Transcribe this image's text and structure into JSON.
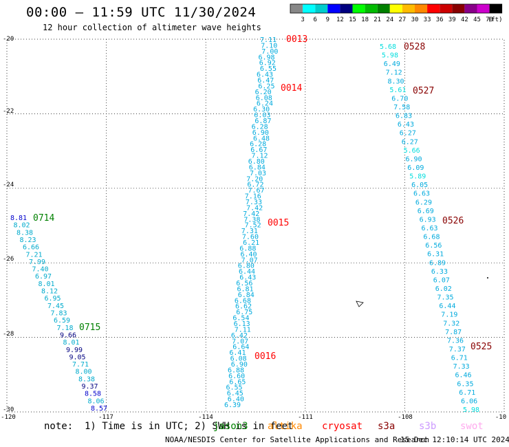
{
  "header": {
    "title": "00:00 — 11:59 UTC 11/30/2024",
    "subtitle": "12 hour collection of altimeter wave heights"
  },
  "color_scale": {
    "unit_label": "(ft)",
    "ticks": [
      "3",
      "6",
      "9",
      "12",
      "15",
      "18",
      "21",
      "24",
      "27",
      "30",
      "33",
      "36",
      "39",
      "42",
      "45",
      "70"
    ],
    "colors": [
      "#888888",
      "#00ffff",
      "#00cccc",
      "#0000ff",
      "#000080",
      "#00ff00",
      "#00bb00",
      "#008000",
      "#ffff00",
      "#ffbb00",
      "#ff8800",
      "#ff0000",
      "#cc0000",
      "#880000",
      "#880088",
      "#cc00cc",
      "#000000"
    ]
  },
  "map": {
    "lon_range": [
      -120,
      -110
    ],
    "lat_range": [
      -30,
      -20
    ],
    "x_tick_labels": [
      "-120",
      "-117",
      "-114",
      "-111",
      "-108",
      "-10"
    ],
    "y_tick_labels": [
      "-20",
      "-22",
      "-24",
      "-26",
      "-28",
      "-30"
    ],
    "grid": "dotted"
  },
  "passes": [
    {
      "label": "0013",
      "color": "#ff0000"
    },
    {
      "label": "0014",
      "color": "#ff0000"
    },
    {
      "label": "0015",
      "color": "#ff0000"
    },
    {
      "label": "0016",
      "color": "#ff0000"
    },
    {
      "label": "0528",
      "color": "#880000"
    },
    {
      "label": "0527",
      "color": "#880000"
    },
    {
      "label": "0526",
      "color": "#880000"
    },
    {
      "label": "0525",
      "color": "#880000"
    },
    {
      "label": "0714",
      "color": "#008000"
    },
    {
      "label": "0715",
      "color": "#008000"
    }
  ],
  "tracks": {
    "track_0013_0016": [
      "7.11",
      "7.10",
      "7.00",
      "6.98",
      "6.92",
      "6.55",
      "6.43",
      "6.47",
      "6.25",
      "6.20",
      "6.08",
      "6.24",
      "6.30",
      "6.03",
      "6.87",
      "6.28",
      "6.90",
      "6.48",
      "6.28",
      "6.67",
      "7.12",
      "6.80",
      "6.84",
      "7.03",
      "7.20",
      "6.72",
      "7.67",
      "7.16",
      "7.33",
      "7.42",
      "7.42",
      "7.38",
      "7.52",
      "7.31",
      "7.60",
      "6.21",
      "6.88",
      "6.40",
      "7.07",
      "6.80",
      "6.44",
      "6.43",
      "6.56",
      "6.81",
      "6.84",
      "6.68",
      "6.62",
      "6.75",
      "6.54",
      "6.13",
      "7.11",
      "6.42",
      "7.07",
      "6.64",
      "6.41",
      "6.08",
      "6.90",
      "6.88",
      "6.60",
      "6.65",
      "6.55",
      "6.45",
      "6.40",
      "6.39"
    ],
    "track_0528_0525": [
      "5.68",
      "5.98",
      "6.49",
      "7.12",
      "8.30",
      "5.61",
      "6.70",
      "7.58",
      "6.83",
      "6.43",
      "6.27",
      "6.27",
      "5.66",
      "6.90",
      "6.09",
      "5.89",
      "6.05",
      "6.63",
      "6.29",
      "6.69",
      "6.93",
      "6.63",
      "6.68",
      "6.56",
      "6.31",
      "6.89",
      "6.33",
      "6.07",
      "6.02",
      "7.35",
      "6.44",
      "7.19",
      "7.32",
      "7.87",
      "7.36",
      "7.37",
      "6.71",
      "7.33",
      "6.46",
      "6.35",
      "6.71",
      "6.06",
      "5.98"
    ],
    "track_0714_0715": [
      "8.81",
      "8.02",
      "8.38",
      "8.23",
      "6.66",
      "7.21",
      "7.99",
      "7.40",
      "6.97",
      "8.01",
      "8.12",
      "6.95",
      "7.45",
      "7.83",
      "6.59",
      "7.18",
      "9.66",
      "8.01",
      "9.99",
      "9.05",
      "7.71",
      "8.00",
      "8.38",
      "9.37",
      "8.58",
      "8.06",
      "8.57"
    ]
  },
  "footer": {
    "note": "note:  1) Time is in UTC; 2) SWH is in feet",
    "satellites": [
      {
        "name": "jason3",
        "color": "#008000"
      },
      {
        "name": "altika",
        "color": "#ff8800"
      },
      {
        "name": "cryosat",
        "color": "#ff0000"
      },
      {
        "name": "s3a",
        "color": "#880000"
      },
      {
        "name": "s3b",
        "color": "#cc99ff"
      },
      {
        "name": "swot",
        "color": "#ffaaee"
      }
    ],
    "credit": "NOAA/NESDIS Center for Satellite Applications and Research",
    "timestamp": "15 Dec 12:10:14 UTC 2024"
  }
}
